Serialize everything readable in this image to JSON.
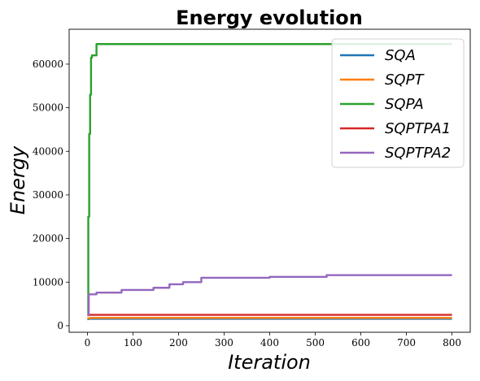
{
  "chart_data": {
    "type": "line",
    "title": "Energy evolution",
    "xlabel": "Iteration",
    "ylabel": "Energy",
    "xlim": [
      -40,
      840
    ],
    "ylim": [
      -1500,
      68000
    ],
    "xticks": [
      "0",
      "100",
      "200",
      "300",
      "400",
      "500",
      "600",
      "700",
      "800"
    ],
    "yticks": [
      "0",
      "10000",
      "20000",
      "30000",
      "40000",
      "50000",
      "60000"
    ],
    "grid": false,
    "legend_position": "top-right",
    "series": [
      {
        "name": "SQA",
        "color": "#1f77b4",
        "x": [
          0,
          2,
          5,
          800
        ],
        "y": [
          1500,
          1600,
          1600,
          1600
        ]
      },
      {
        "name": "SQPT",
        "color": "#ff7f0e",
        "x": [
          0,
          5,
          800
        ],
        "y": [
          1700,
          1800,
          1800
        ]
      },
      {
        "name": "SQPA",
        "color": "#2ca02c",
        "x": [
          0,
          2,
          4,
          6,
          8,
          10,
          14,
          20,
          800
        ],
        "y": [
          2500,
          25000,
          44000,
          53000,
          61500,
          62000,
          62000,
          64600,
          64600
        ]
      },
      {
        "name": "SQPTPA1",
        "color": "#d62728",
        "x": [
          0,
          3,
          800
        ],
        "y": [
          2400,
          2500,
          2500
        ]
      },
      {
        "name": "SQPTPA2",
        "color": "#9467bd",
        "x": [
          0,
          3,
          20,
          60,
          75,
          135,
          145,
          180,
          210,
          250,
          400,
          525,
          800
        ],
        "y": [
          2500,
          7200,
          7600,
          7600,
          8200,
          8200,
          8700,
          9500,
          10000,
          11000,
          11200,
          11600,
          11600
        ]
      }
    ]
  }
}
